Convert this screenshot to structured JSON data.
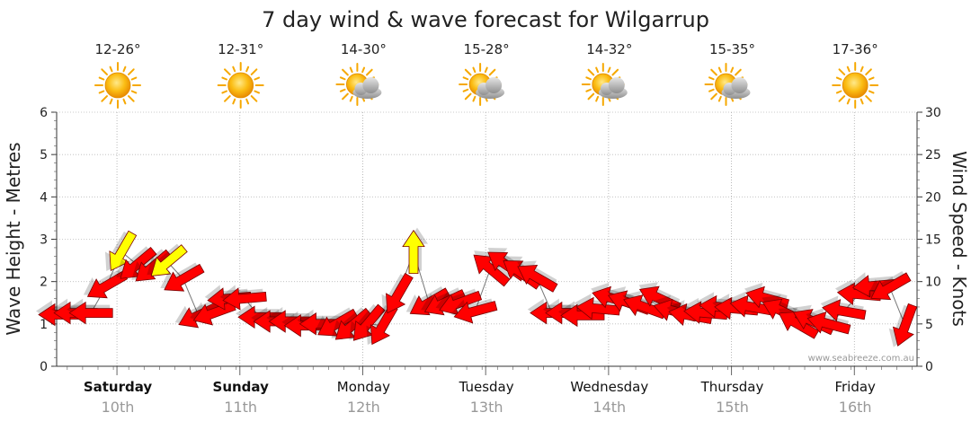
{
  "chart_data": {
    "type": "line",
    "title": "7 day wind & wave forecast for Wilgarrup",
    "ylabel_left": "Wave Height - Metres",
    "ylabel_right": "Wind Speed - Knots",
    "ylim_left": [
      0,
      6
    ],
    "ylim_right": [
      0,
      30
    ],
    "yticks_left": [
      "0",
      "1",
      "2",
      "3",
      "4",
      "5",
      "6"
    ],
    "yticks_right": [
      "0",
      "5",
      "10",
      "15",
      "20",
      "25",
      "30"
    ],
    "watermark": "www.seabreeze.com.au",
    "grid": true,
    "days": [
      {
        "name": "Saturday",
        "date": "10th",
        "bold": true,
        "temp": "12-26°",
        "icon": "sun-icon"
      },
      {
        "name": "Sunday",
        "date": "11th",
        "bold": true,
        "temp": "12-31°",
        "icon": "sun-icon"
      },
      {
        "name": "Monday",
        "date": "12th",
        "bold": false,
        "temp": "14-30°",
        "icon": "sun-cloud-icon"
      },
      {
        "name": "Tuesday",
        "date": "13th",
        "bold": false,
        "temp": "15-28°",
        "icon": "sun-cloud-icon"
      },
      {
        "name": "Wednesday",
        "date": "14th",
        "bold": false,
        "temp": "14-32°",
        "icon": "sun-cloud-icon"
      },
      {
        "name": "Thursday",
        "date": "15th",
        "bold": false,
        "temp": "15-35°",
        "icon": "sun-cloud-icon"
      },
      {
        "name": "Friday",
        "date": "16th",
        "bold": false,
        "temp": "17-36°",
        "icon": "sun-icon"
      }
    ],
    "series": [
      {
        "kind": "wind-arrows",
        "x_start_day": 0,
        "step_hours": 3,
        "speed_knots": [
          6.1,
          6.3,
          6.3,
          9.5,
          13.5,
          12,
          11.7,
          12.3,
          10.3,
          6,
          6.3,
          8,
          8,
          5.8,
          5.3,
          5.3,
          4.8,
          5,
          5,
          4.8,
          5,
          4.8,
          8.5,
          13.5,
          7.5,
          7.5,
          7.5,
          6.5,
          11.5,
          12,
          11,
          10.5,
          6.3,
          6.3,
          6,
          6.8,
          8,
          7.5,
          7,
          8,
          6.5,
          6,
          6.3,
          7,
          6.8,
          7,
          8,
          6.5,
          5,
          5.3,
          5,
          6.5,
          8.5,
          9.5,
          9.3,
          4.8
        ],
        "direction_deg": [
          270,
          270,
          270,
          240,
          210,
          230,
          230,
          230,
          240,
          245,
          250,
          265,
          265,
          270,
          270,
          270,
          270,
          270,
          240,
          230,
          220,
          210,
          210,
          0,
          240,
          245,
          250,
          255,
          310,
          305,
          305,
          300,
          270,
          270,
          270,
          275,
          285,
          290,
          290,
          295,
          285,
          280,
          275,
          275,
          275,
          280,
          285,
          295,
          300,
          295,
          285,
          280,
          275,
          265,
          240,
          200
        ],
        "color_rules": [
          {
            "max_knots": 12,
            "color": "#ff0000"
          },
          {
            "max_knots": 99,
            "color": "#ffff00"
          }
        ]
      }
    ]
  }
}
